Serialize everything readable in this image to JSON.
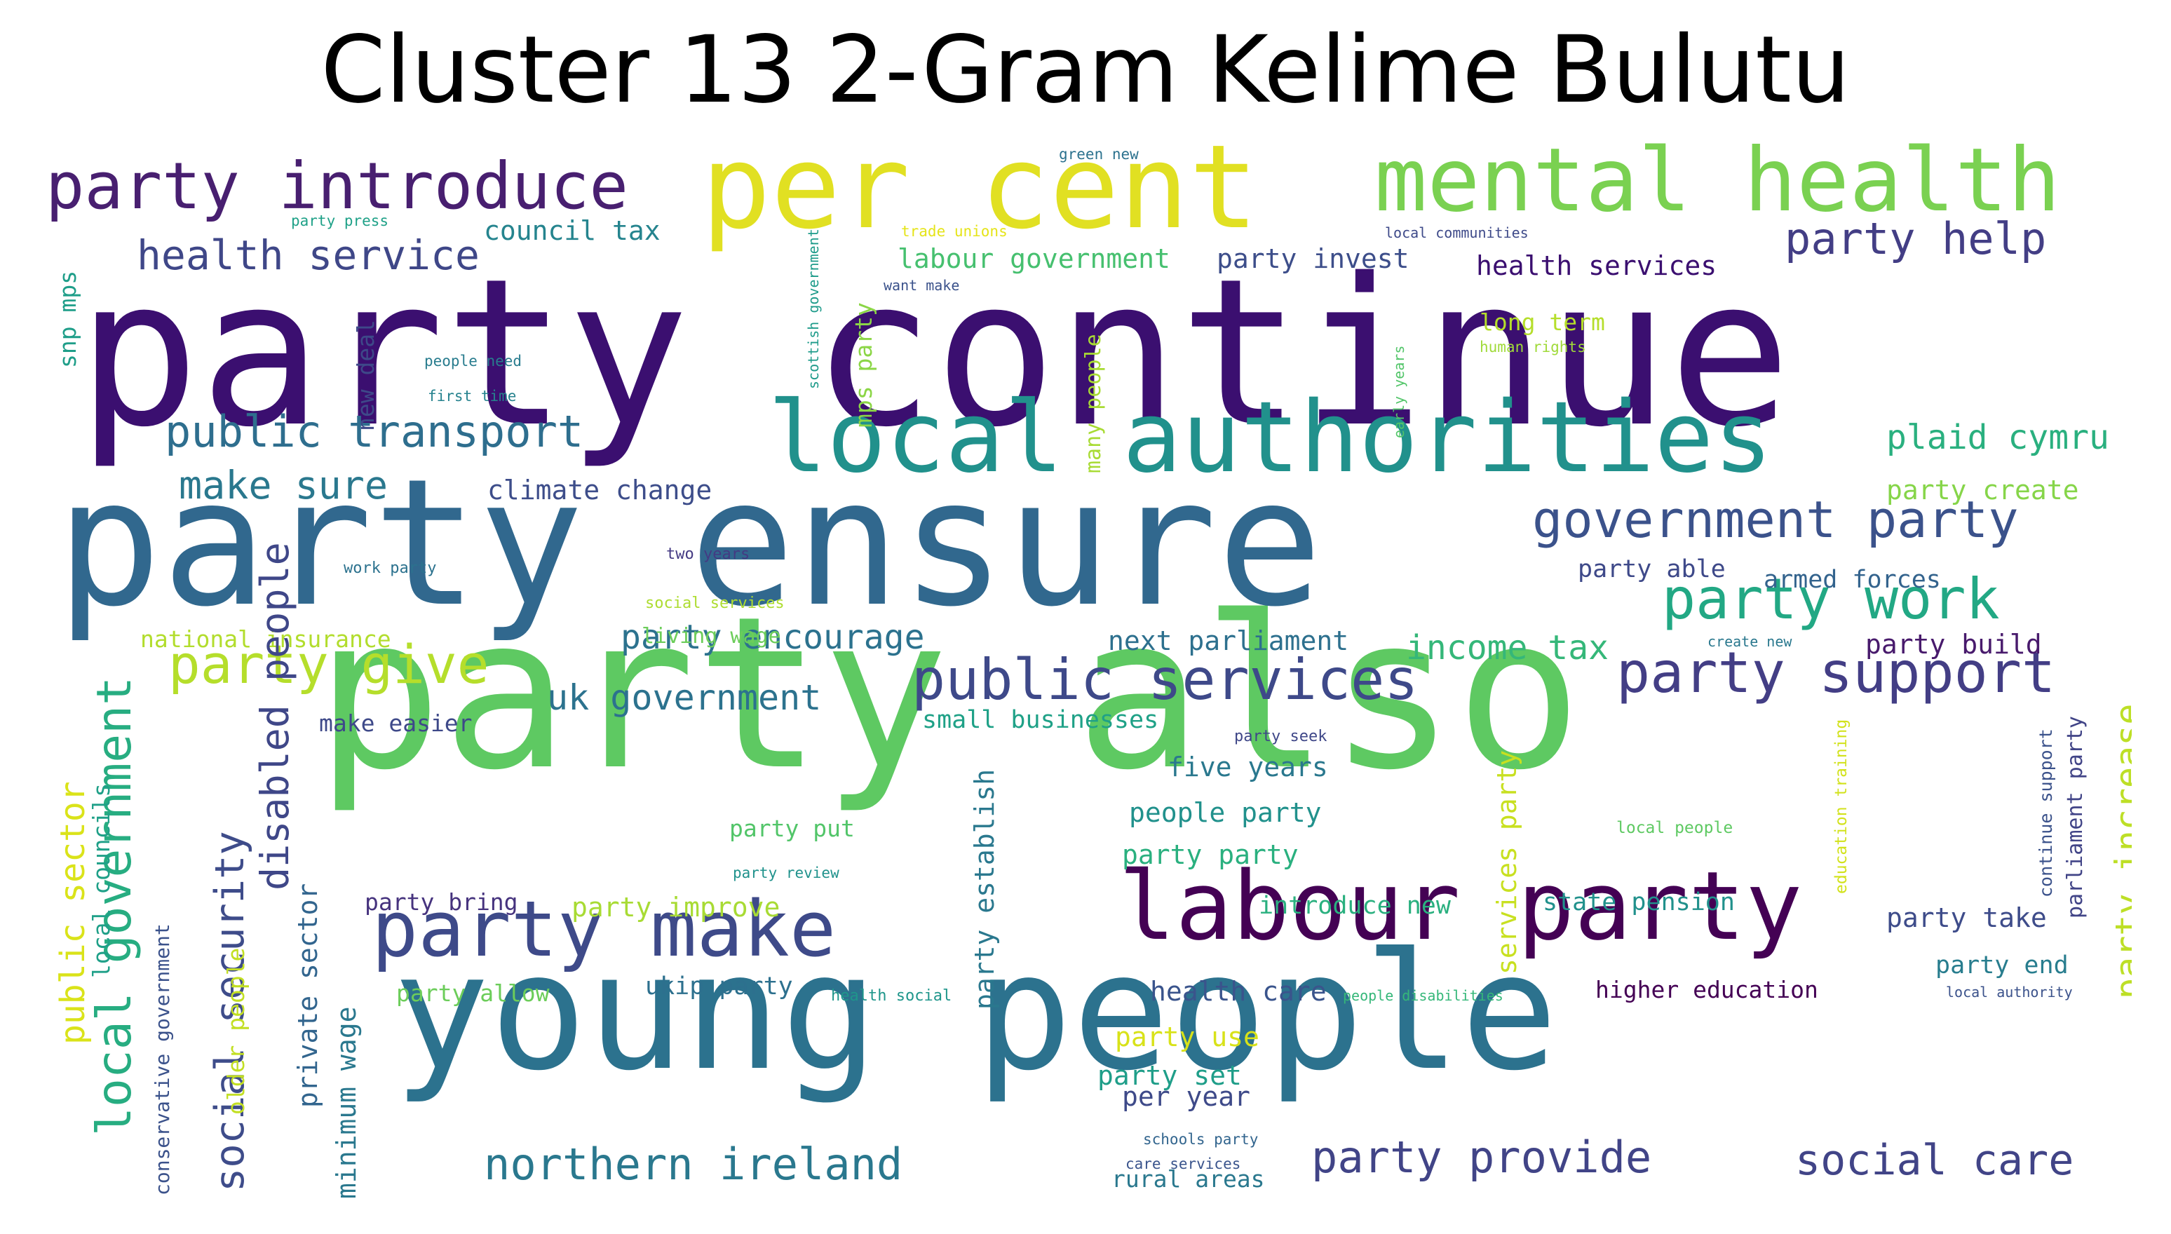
{
  "title": "Cluster 13 2-Gram Kelime Bulutu",
  "words": [
    {
      "text": "party continue",
      "color": "#3b0f70"
    },
    {
      "text": "party also",
      "color": "#5ec962"
    },
    {
      "text": "party ensure",
      "color": "#31688e"
    },
    {
      "text": "young people",
      "color": "#2c728e"
    },
    {
      "text": "local authorities",
      "color": "#21918c"
    },
    {
      "text": "per cent",
      "color": "#e1e022"
    },
    {
      "text": "mental health",
      "color": "#7ad151"
    },
    {
      "text": "labour party",
      "color": "#440154"
    },
    {
      "text": "party make",
      "color": "#3e4a89"
    },
    {
      "text": "party introduce",
      "color": "#481f70"
    },
    {
      "text": "public services",
      "color": "#3e4989"
    },
    {
      "text": "party support",
      "color": "#433e85"
    },
    {
      "text": "government party",
      "color": "#3b528b"
    },
    {
      "text": "party work",
      "color": "#22a884"
    },
    {
      "text": "party give",
      "color": "#b5de2b"
    },
    {
      "text": "public transport",
      "color": "#2e6e8e"
    },
    {
      "text": "health service",
      "color": "#3f4788"
    },
    {
      "text": "party help",
      "color": "#433e85"
    },
    {
      "text": "northern ireland",
      "color": "#2a788e"
    },
    {
      "text": "party provide",
      "color": "#414487"
    },
    {
      "text": "social care",
      "color": "#414487"
    },
    {
      "text": "make sure",
      "color": "#2a788e"
    },
    {
      "text": "uk government",
      "color": "#2c728e"
    },
    {
      "text": "party encourage",
      "color": "#2c728e"
    },
    {
      "text": "income tax",
      "color": "#35b779"
    },
    {
      "text": "plaid cymru",
      "color": "#2ab07f"
    },
    {
      "text": "council tax",
      "color": "#25848e"
    },
    {
      "text": "climate change",
      "color": "#3d4d8a"
    },
    {
      "text": "labour government",
      "color": "#46c06f"
    },
    {
      "text": "party invest",
      "color": "#3d4e8a"
    },
    {
      "text": "health services",
      "color": "#3b0f70"
    },
    {
      "text": "party create",
      "color": "#86d549"
    },
    {
      "text": "party able",
      "color": "#3e4989"
    },
    {
      "text": "armed forces",
      "color": "#33638d"
    },
    {
      "text": "next parliament",
      "color": "#2d708e"
    },
    {
      "text": "party build",
      "color": "#481a6c"
    },
    {
      "text": "small businesses",
      "color": "#1fa187"
    },
    {
      "text": "five years",
      "color": "#2a788e"
    },
    {
      "text": "people party",
      "color": "#21918c"
    },
    {
      "text": "party party",
      "color": "#2ab07f"
    },
    {
      "text": "party put",
      "color": "#52c569"
    },
    {
      "text": "party improve",
      "color": "#a8db34"
    },
    {
      "text": "party bring",
      "color": "#46337e"
    },
    {
      "text": "introduce new",
      "color": "#2ab07f"
    },
    {
      "text": "state pension",
      "color": "#21918c"
    },
    {
      "text": "party take",
      "color": "#3e4c8a"
    },
    {
      "text": "party end",
      "color": "#287d8e"
    },
    {
      "text": "ukip party",
      "color": "#2d708e"
    },
    {
      "text": "party allow",
      "color": "#6ccd5a"
    },
    {
      "text": "health care",
      "color": "#3a548c"
    },
    {
      "text": "higher education",
      "color": "#440154"
    },
    {
      "text": "party use",
      "color": "#d8e219"
    },
    {
      "text": "party set",
      "color": "#1f9e89"
    },
    {
      "text": "per year",
      "color": "#3e4a89"
    },
    {
      "text": "rural areas",
      "color": "#2a788e"
    },
    {
      "text": "national insurance",
      "color": "#b2dd2d"
    },
    {
      "text": "make easier",
      "color": "#3e4989"
    },
    {
      "text": "living wage",
      "color": "#6ccd5a"
    },
    {
      "text": "long term",
      "color": "#b5de2b"
    },
    {
      "text": "green new",
      "color": "#2c728e"
    },
    {
      "text": "party press",
      "color": "#1fa188"
    },
    {
      "text": "trade unions",
      "color": "#e5e419"
    },
    {
      "text": "want make",
      "color": "#3b528b"
    },
    {
      "text": "local communities",
      "color": "#3e4a89"
    },
    {
      "text": "people need",
      "color": "#287c8e"
    },
    {
      "text": "first time",
      "color": "#26828e"
    },
    {
      "text": "human rights",
      "color": "#a0da39"
    },
    {
      "text": "two years",
      "color": "#443a83"
    },
    {
      "text": "work party",
      "color": "#2c728e"
    },
    {
      "text": "social services",
      "color": "#addc30"
    },
    {
      "text": "create new",
      "color": "#2a788e"
    },
    {
      "text": "party seek",
      "color": "#3f4788"
    },
    {
      "text": "party review",
      "color": "#20928c"
    },
    {
      "text": "local people",
      "color": "#5ec962"
    },
    {
      "text": "health social",
      "color": "#1f968b"
    },
    {
      "text": "people disabilities",
      "color": "#35b779"
    },
    {
      "text": "local authority",
      "color": "#3b528b"
    },
    {
      "text": "schools party",
      "color": "#32658e"
    },
    {
      "text": "care services",
      "color": "#3a548c"
    },
    {
      "text": "snp mps",
      "color": "#1f9e89"
    },
    {
      "text": "new deal",
      "color": "#3e4989"
    },
    {
      "text": "scottish government",
      "color": "#1e9b8a"
    },
    {
      "text": "mps party",
      "color": "#8bd646"
    },
    {
      "text": "many people",
      "color": "#a8db34"
    },
    {
      "text": "early years",
      "color": "#52c569"
    },
    {
      "text": "local government",
      "color": "#27ad81"
    },
    {
      "text": "public sector",
      "color": "#dae319"
    },
    {
      "text": "local councils",
      "color": "#1fa088"
    },
    {
      "text": "conservative government",
      "color": "#3b528b"
    },
    {
      "text": "social security",
      "color": "#3e4c8a"
    },
    {
      "text": "older people",
      "color": "#c2df23"
    },
    {
      "text": "disabled people",
      "color": "#3f4788"
    },
    {
      "text": "private sector",
      "color": "#32658e"
    },
    {
      "text": "minimum wage",
      "color": "#2a788e"
    },
    {
      "text": "party establish",
      "color": "#2a788e"
    },
    {
      "text": "services party",
      "color": "#c8e020"
    },
    {
      "text": "education training",
      "color": "#d2e21b"
    },
    {
      "text": "continue support",
      "color": "#3b528b"
    },
    {
      "text": "parliament party",
      "color": "#414487"
    },
    {
      "text": "party increase",
      "color": "#bddf26"
    }
  ]
}
